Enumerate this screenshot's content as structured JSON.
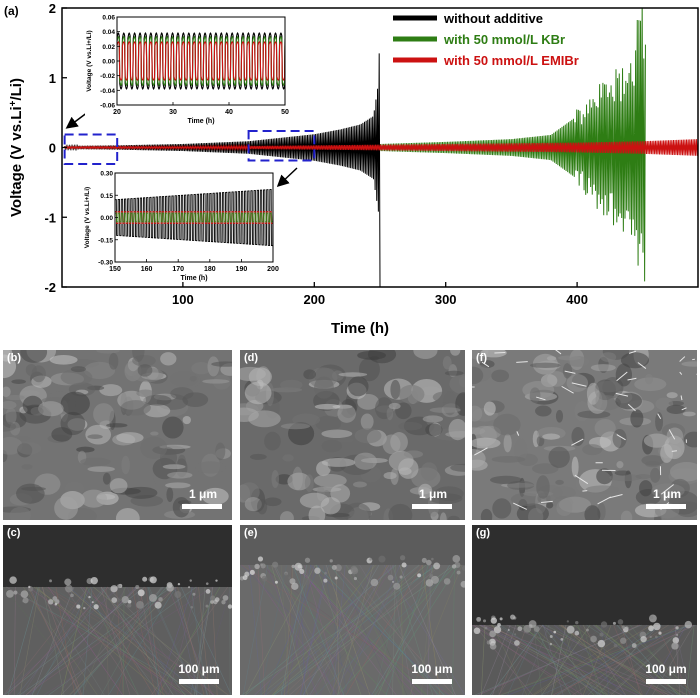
{
  "panel_a": {
    "label": "(a)",
    "chart_data": {
      "type": "line",
      "title": "",
      "xlabel": "Time (h)",
      "ylabel_html": "Voltage (V vs.Li<tspan baseline-shift=\"super\" font-size=\"10\">+</tspan>/Li)",
      "ylabel": "Voltage (V vs.Li+/Li)",
      "xlim": [
        8,
        492
      ],
      "ylim": [
        -2,
        2
      ],
      "x_ticks": [
        100,
        200,
        300,
        400
      ],
      "y_ticks": [
        -2,
        -1,
        0,
        1,
        2
      ],
      "legend_position": "top-right",
      "series": [
        {
          "name": "without additive",
          "color": "#000000",
          "end_time": 250,
          "amplitude_envelope": [
            [
              10,
              0.02
            ],
            [
              50,
              0.03
            ],
            [
              100,
              0.05
            ],
            [
              150,
              0.09
            ],
            [
              180,
              0.15
            ],
            [
              200,
              0.19
            ],
            [
              220,
              0.26
            ],
            [
              235,
              0.33
            ],
            [
              245,
              0.45
            ],
            [
              249,
              0.95
            ],
            [
              250,
              2.0
            ]
          ]
        },
        {
          "name": "with 50 mmol/L KBr",
          "color": "#2e7d14",
          "end_time": 452,
          "amplitude_envelope": [
            [
              10,
              0.012
            ],
            [
              100,
              0.015
            ],
            [
              150,
              0.018
            ],
            [
              200,
              0.03
            ],
            [
              250,
              0.05
            ],
            [
              300,
              0.08
            ],
            [
              350,
              0.12
            ],
            [
              380,
              0.18
            ],
            [
              400,
              0.45
            ],
            [
              420,
              0.8
            ],
            [
              440,
              1.1
            ],
            [
              452,
              2.0
            ]
          ]
        },
        {
          "name": "with 50 mmol/L EMIBr",
          "color": "#cc1111",
          "end_time": 492,
          "amplitude_envelope": [
            [
              10,
              0.012
            ],
            [
              100,
              0.015
            ],
            [
              200,
              0.03
            ],
            [
              300,
              0.05
            ],
            [
              400,
              0.07
            ],
            [
              450,
              0.09
            ],
            [
              492,
              0.12
            ]
          ]
        }
      ],
      "insets": [
        {
          "xlabel": "Time (h)",
          "ylabel": "Voltage (V vs.Li+/Li)",
          "xlim": [
            20,
            50
          ],
          "ylim": [
            -0.06,
            0.06
          ],
          "x_ticks": [
            20,
            30,
            40,
            50
          ],
          "y_ticks": [
            -0.06,
            -0.04,
            -0.02,
            0.0,
            0.02,
            0.04,
            0.06
          ],
          "y_tick_labels": [
            "-0.06",
            "-0.04",
            "-0.02",
            "0.00",
            "0.02",
            "0.04",
            "0.06"
          ],
          "cycles": 31,
          "amplitudes": {
            "without additive": 0.038,
            "with 50 mmol/L KBr": 0.033,
            "with 50 mmol/L EMIBr": 0.026
          }
        },
        {
          "xlabel": "Time (h)",
          "ylabel": "Voltage (V vs.Li+/Li)",
          "xlim": [
            150,
            200
          ],
          "ylim": [
            -0.3,
            0.3
          ],
          "x_ticks": [
            150,
            160,
            170,
            180,
            190,
            200
          ],
          "y_ticks": [
            -0.3,
            -0.15,
            0.0,
            0.15,
            0.3
          ],
          "y_tick_labels": [
            "-0.30",
            "-0.15",
            "0.00",
            "0.15",
            "0.30"
          ],
          "cycles": 50,
          "amplitude_start": {
            "without additive": 0.12,
            "with 50 mmol/L KBr": 0.03,
            "with 50 mmol/L EMIBr": 0.04
          },
          "amplitude_end": {
            "without additive": 0.19,
            "with 50 mmol/L KBr": 0.03,
            "with 50 mmol/L EMIBr": 0.04
          }
        }
      ],
      "zoom_regions": [
        {
          "x": [
            10,
            50
          ],
          "y": [
            -0.15,
            0.1
          ]
        },
        {
          "x": [
            150,
            200
          ],
          "y": [
            -0.1,
            0.15
          ]
        }
      ]
    }
  },
  "sem_panels": [
    {
      "key": "b",
      "label": "(b)",
      "scale": "1 μm",
      "base": "#737373"
    },
    {
      "key": "d",
      "label": "(d)",
      "scale": "1 μm",
      "base": "#6a6a6a"
    },
    {
      "key": "f",
      "label": "(f)",
      "scale": "1 μm",
      "base": "#7a7a7a"
    },
    {
      "key": "c",
      "label": "(c)",
      "scale": "100 μm",
      "base": "#5f5f5f"
    },
    {
      "key": "e",
      "label": "(e)",
      "scale": "100 μm",
      "base": "#6a6a6a"
    },
    {
      "key": "g",
      "label": "(g)",
      "scale": "100 μm",
      "base": "#5a5a5a"
    }
  ],
  "colors": {
    "axis": "#000000",
    "zoom_box": "#2222cc",
    "arrow": "#000000"
  }
}
